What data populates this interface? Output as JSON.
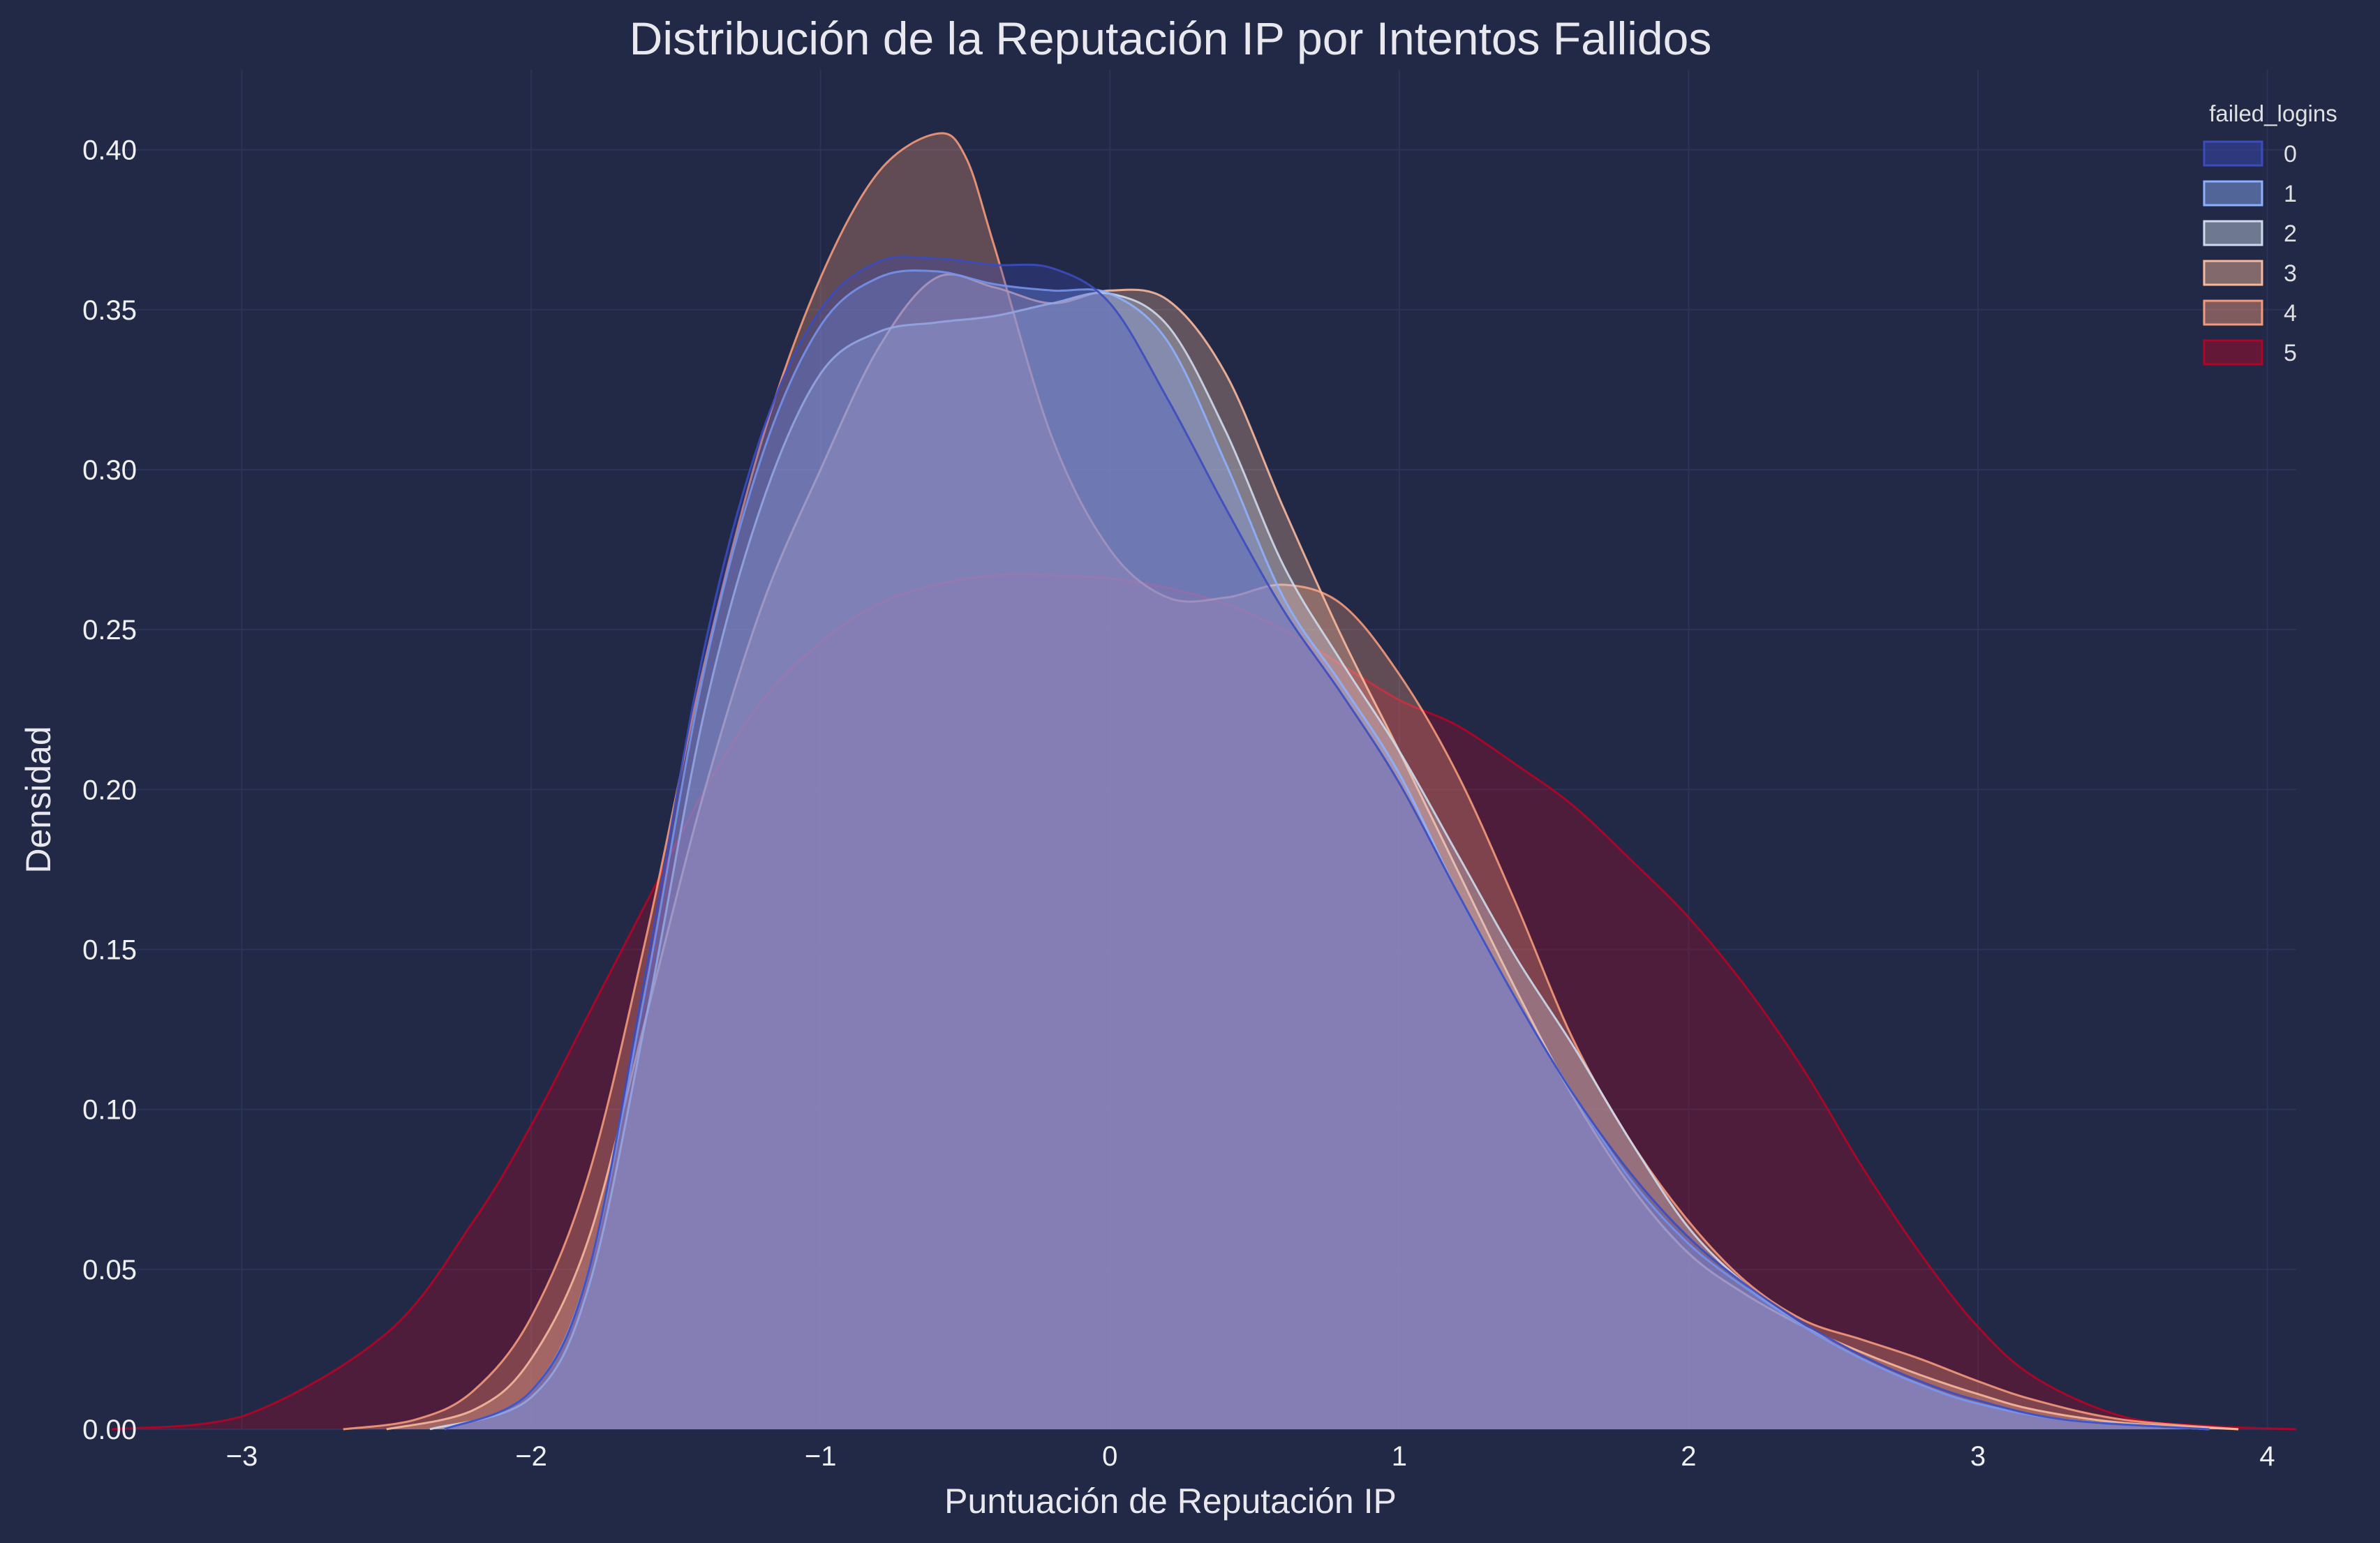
{
  "chart_data": {
    "type": "area",
    "title": "Distribución de la Reputación IP por Intentos Fallidos",
    "xlabel": "Puntuación de Reputación IP",
    "ylabel": "Densidad",
    "xlim": [
      -3.45,
      4.1
    ],
    "ylim": [
      0,
      0.425
    ],
    "xticks": [
      -3,
      -2,
      -1,
      0,
      1,
      2,
      3,
      4
    ],
    "xtick_labels": [
      "−3",
      "−2",
      "−1",
      "0",
      "1",
      "2",
      "3",
      "4"
    ],
    "yticks": [
      0,
      0.05,
      0.1,
      0.15,
      0.2,
      0.25,
      0.3,
      0.35,
      0.4
    ],
    "ytick_labels": [
      "0.00",
      "0.05",
      "0.10",
      "0.15",
      "0.20",
      "0.25",
      "0.30",
      "0.35",
      "0.40"
    ],
    "grid": true,
    "legend": {
      "title": "failed_logins",
      "placement": "top-right"
    },
    "colors": {
      "background": "#212946",
      "grid": "#2a3459",
      "text": "#f0f0f0"
    },
    "series": [
      {
        "name": "5",
        "color": "#b40426",
        "x": [
          -3.45,
          -3.0,
          -2.5,
          -2.2,
          -2.0,
          -1.8,
          -1.6,
          -1.4,
          -1.2,
          -1.0,
          -0.8,
          -0.6,
          -0.4,
          -0.2,
          0.0,
          0.2,
          0.4,
          0.6,
          0.8,
          1.0,
          1.2,
          1.4,
          1.6,
          1.8,
          2.0,
          2.2,
          2.4,
          2.6,
          2.8,
          3.0,
          3.2,
          3.5,
          3.8,
          4.1
        ],
        "y": [
          0.0,
          0.004,
          0.03,
          0.065,
          0.095,
          0.13,
          0.165,
          0.2,
          0.228,
          0.246,
          0.258,
          0.264,
          0.267,
          0.267,
          0.266,
          0.263,
          0.258,
          0.25,
          0.239,
          0.228,
          0.22,
          0.208,
          0.195,
          0.178,
          0.16,
          0.138,
          0.112,
          0.082,
          0.055,
          0.032,
          0.016,
          0.004,
          0.001,
          0.0
        ]
      },
      {
        "name": "4",
        "color": "#f49a7b",
        "x": [
          -2.65,
          -2.4,
          -2.2,
          -2.0,
          -1.8,
          -1.6,
          -1.4,
          -1.2,
          -1.0,
          -0.8,
          -0.6,
          -0.5,
          -0.4,
          -0.2,
          0.0,
          0.2,
          0.4,
          0.6,
          0.8,
          1.0,
          1.2,
          1.4,
          1.6,
          1.8,
          2.0,
          2.2,
          2.4,
          2.6,
          2.8,
          3.0,
          3.2,
          3.5,
          3.9
        ],
        "y": [
          0.0,
          0.003,
          0.012,
          0.035,
          0.08,
          0.155,
          0.24,
          0.31,
          0.36,
          0.393,
          0.405,
          0.398,
          0.37,
          0.31,
          0.275,
          0.26,
          0.26,
          0.264,
          0.258,
          0.236,
          0.205,
          0.165,
          0.122,
          0.09,
          0.065,
          0.046,
          0.034,
          0.028,
          0.022,
          0.015,
          0.009,
          0.003,
          0.0
        ]
      },
      {
        "name": "3",
        "color": "#f7b89c",
        "x": [
          -2.5,
          -2.2,
          -2.0,
          -1.8,
          -1.6,
          -1.4,
          -1.2,
          -1.0,
          -0.8,
          -0.6,
          -0.4,
          -0.2,
          0.0,
          0.2,
          0.4,
          0.6,
          0.8,
          1.0,
          1.2,
          1.4,
          1.6,
          1.8,
          2.0,
          2.2,
          2.4,
          2.6,
          2.8,
          3.0,
          3.2,
          3.5,
          3.9
        ],
        "y": [
          0.0,
          0.006,
          0.022,
          0.06,
          0.13,
          0.2,
          0.258,
          0.3,
          0.338,
          0.36,
          0.357,
          0.352,
          0.356,
          0.353,
          0.33,
          0.288,
          0.248,
          0.212,
          0.175,
          0.138,
          0.104,
          0.076,
          0.055,
          0.042,
          0.032,
          0.024,
          0.017,
          0.011,
          0.006,
          0.002,
          0.0
        ]
      },
      {
        "name": "2",
        "color": "#cdd9ec",
        "x": [
          -2.35,
          -2.0,
          -1.8,
          -1.6,
          -1.4,
          -1.2,
          -1.0,
          -0.8,
          -0.6,
          -0.4,
          -0.2,
          0.0,
          0.2,
          0.4,
          0.6,
          0.8,
          1.0,
          1.2,
          1.4,
          1.6,
          1.8,
          2.0,
          2.2,
          2.4,
          2.6,
          2.8,
          3.0,
          3.3,
          3.8
        ],
        "y": [
          0.0,
          0.01,
          0.045,
          0.13,
          0.225,
          0.29,
          0.33,
          0.343,
          0.346,
          0.348,
          0.352,
          0.355,
          0.345,
          0.312,
          0.27,
          0.24,
          0.212,
          0.18,
          0.148,
          0.12,
          0.09,
          0.063,
          0.045,
          0.032,
          0.022,
          0.014,
          0.008,
          0.003,
          0.0
        ]
      },
      {
        "name": "1",
        "color": "#8db0fe",
        "x": [
          -2.3,
          -2.0,
          -1.8,
          -1.6,
          -1.4,
          -1.2,
          -1.0,
          -0.8,
          -0.6,
          -0.4,
          -0.2,
          0.0,
          0.2,
          0.4,
          0.6,
          0.8,
          1.0,
          1.2,
          1.4,
          1.6,
          1.8,
          2.0,
          2.2,
          2.4,
          2.6,
          2.8,
          3.0,
          3.3,
          3.8
        ],
        "y": [
          0.0,
          0.012,
          0.05,
          0.14,
          0.238,
          0.305,
          0.345,
          0.36,
          0.362,
          0.358,
          0.356,
          0.355,
          0.34,
          0.302,
          0.26,
          0.233,
          0.205,
          0.168,
          0.135,
          0.105,
          0.078,
          0.058,
          0.044,
          0.032,
          0.022,
          0.014,
          0.008,
          0.003,
          0.0
        ]
      },
      {
        "name": "0",
        "color": "#3b4cc0",
        "x": [
          -2.3,
          -2.0,
          -1.8,
          -1.6,
          -1.4,
          -1.2,
          -1.0,
          -0.8,
          -0.6,
          -0.4,
          -0.2,
          0.0,
          0.2,
          0.4,
          0.6,
          0.8,
          1.0,
          1.2,
          1.4,
          1.6,
          1.8,
          2.0,
          2.2,
          2.4,
          2.6,
          2.8,
          3.0,
          3.3,
          3.8
        ],
        "y": [
          0.0,
          0.012,
          0.05,
          0.145,
          0.245,
          0.312,
          0.35,
          0.365,
          0.366,
          0.364,
          0.363,
          0.352,
          0.322,
          0.288,
          0.256,
          0.23,
          0.202,
          0.168,
          0.135,
          0.105,
          0.08,
          0.06,
          0.045,
          0.033,
          0.023,
          0.015,
          0.009,
          0.003,
          0.0
        ]
      }
    ]
  }
}
